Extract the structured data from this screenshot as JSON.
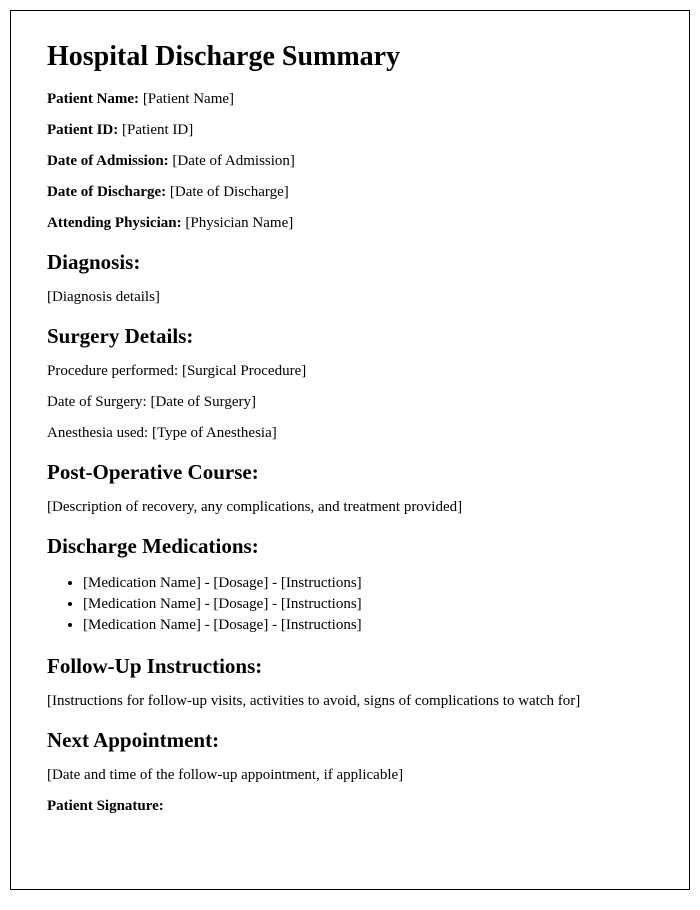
{
  "title": "Hospital Discharge Summary",
  "fields": {
    "patient_name": {
      "label": "Patient Name:",
      "value": "[Patient Name]"
    },
    "patient_id": {
      "label": "Patient ID:",
      "value": "[Patient ID]"
    },
    "admission_date": {
      "label": "Date of Admission:",
      "value": "[Date of Admission]"
    },
    "discharge_date": {
      "label": "Date of Discharge:",
      "value": "[Date of Discharge]"
    },
    "physician": {
      "label": "Attending Physician:",
      "value": "[Physician Name]"
    }
  },
  "diagnosis": {
    "heading": "Diagnosis:",
    "text": "[Diagnosis details]"
  },
  "surgery": {
    "heading": "Surgery Details:",
    "procedure": {
      "label": "Procedure performed:",
      "value": "[Surgical Procedure]"
    },
    "date": {
      "label": "Date of Surgery:",
      "value": "[Date of Surgery]"
    },
    "anesthesia": {
      "label": "Anesthesia used:",
      "value": "[Type of Anesthesia]"
    }
  },
  "postop": {
    "heading": "Post-Operative Course:",
    "text": "[Description of recovery, any complications, and treatment provided]"
  },
  "medications": {
    "heading": "Discharge Medications:",
    "items": [
      "[Medication Name] - [Dosage] - [Instructions]",
      "[Medication Name] - [Dosage] - [Instructions]",
      "[Medication Name] - [Dosage] - [Instructions]"
    ]
  },
  "followup": {
    "heading": "Follow-Up Instructions:",
    "text": "[Instructions for follow-up visits, activities to avoid, signs of complications to watch for]"
  },
  "next_appt": {
    "heading": "Next Appointment:",
    "text": "[Date and time of the follow-up appointment, if applicable]"
  },
  "signature": {
    "label": "Patient Signature:"
  }
}
